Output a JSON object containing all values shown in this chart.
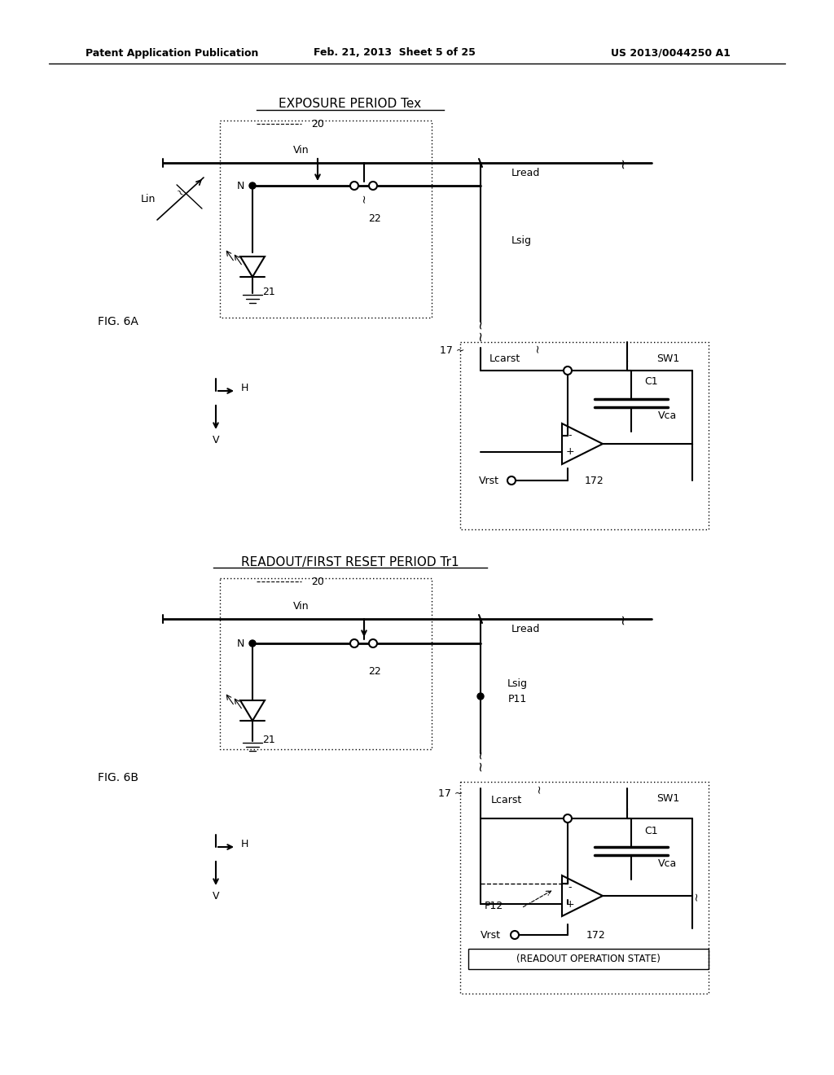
{
  "bg_color": "#ffffff",
  "header_text": "Patent Application Publication",
  "header_date": "Feb. 21, 2013  Sheet 5 of 25",
  "header_patent": "US 2013/0044250 A1",
  "fig6a_label": "EXPOSURE PERIOD Tex",
  "fig6b_label": "READOUT/FIRST RESET PERIOD Tr1",
  "readout_state_label": "(READOUT OPERATION STATE)"
}
